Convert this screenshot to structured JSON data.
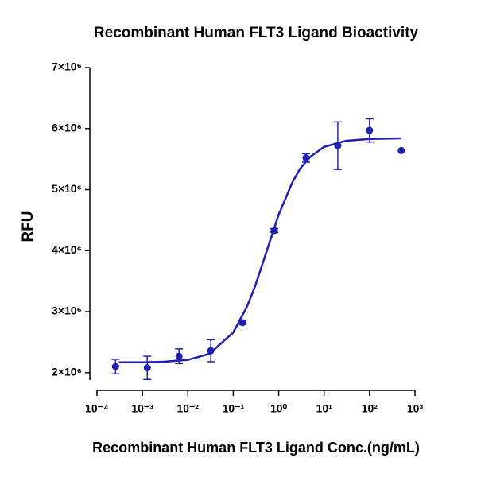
{
  "chart_data": {
    "type": "scatter",
    "title": "Recombinant Human FLT3 Ligand Bioactivity",
    "x_label": "Recombinant Human FLT3 Ligand Conc.(ng/mL)",
    "y_label": "RFU",
    "x": [
      0.000256,
      0.00128,
      0.0064,
      0.032,
      0.16,
      0.8,
      4,
      20,
      100,
      500
    ],
    "values": [
      2100000,
      2080000,
      2270000,
      2360000,
      2820000,
      4330000,
      5520000,
      5720000,
      5970000,
      5640000
    ],
    "errors": [
      120000,
      190000,
      120000,
      180000,
      30000,
      30000,
      70000,
      390000,
      190000,
      null
    ],
    "fit": {
      "x": [
        0.0003,
        0.001,
        0.003,
        0.01,
        0.03,
        0.1,
        0.2,
        0.3,
        0.5,
        1,
        2,
        3,
        5,
        10,
        30,
        100,
        500
      ],
      "values": [
        2170000,
        2170000,
        2180000,
        2210000,
        2310000,
        2660000,
        3080000,
        3410000,
        3910000,
        4590000,
        5120000,
        5350000,
        5540000,
        5700000,
        5800000,
        5830000,
        5840000
      ]
    },
    "color": "#1f1fb0",
    "x_log": true,
    "xlim": [
      0.0001,
      1000
    ],
    "xticks": [
      {
        "value": 0.0001,
        "label": "10⁻⁴"
      },
      {
        "value": 0.001,
        "label": "10⁻³"
      },
      {
        "value": 0.01,
        "label": "10⁻²"
      },
      {
        "value": 0.1,
        "label": "10⁻¹"
      },
      {
        "value": 1,
        "label": "10⁰"
      },
      {
        "value": 10,
        "label": "10¹"
      },
      {
        "value": 100,
        "label": "10²"
      },
      {
        "value": 1000,
        "label": "10³"
      }
    ],
    "ylim": [
      1880000,
      7000000
    ],
    "yticks": [
      {
        "value": 2000000,
        "label": "2×10⁶"
      },
      {
        "value": 3000000,
        "label": "3×10⁶"
      },
      {
        "value": 4000000,
        "label": "4×10⁶"
      },
      {
        "value": 5000000,
        "label": "5×10⁶"
      },
      {
        "value": 6000000,
        "label": "6×10⁶"
      },
      {
        "value": 7000000,
        "label": "7×10⁶"
      }
    ],
    "grid": false
  }
}
